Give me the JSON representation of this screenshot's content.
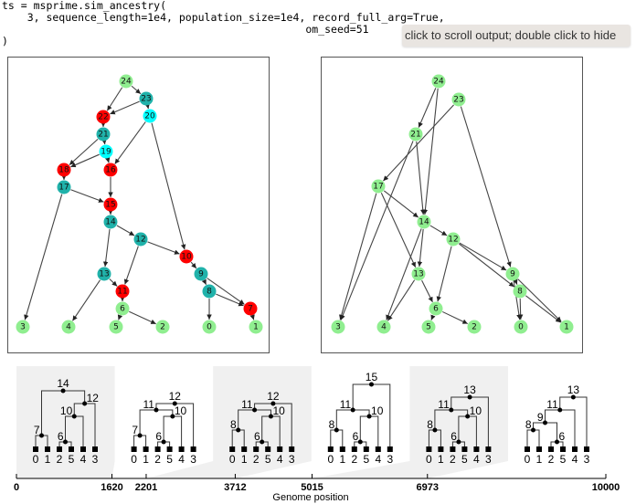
{
  "code": {
    "line1": "ts = msprime.sim_ancestry(",
    "line2": "    3, sequence_length=1e4, population_size=1e4, record_full_arg=True,",
    "line3": "                                                om_seed=51",
    "line4": ")"
  },
  "tooltip": "click to scroll output; double click to hide",
  "colors": {
    "red": "#ff0000",
    "cyan": "#00ffff",
    "teal": "#20b2aa",
    "green": "#90ee90",
    "edge": "#444444",
    "shade": "#f0f0f0"
  },
  "graphs": [
    {
      "name": "full-arg-graph",
      "node_colors": {
        "24": "green",
        "23": "teal",
        "22": "red",
        "20": "cyan",
        "21": "teal",
        "19": "cyan",
        "18": "red",
        "16": "red",
        "17": "teal",
        "15": "red",
        "14": "teal",
        "12": "teal",
        "10": "red",
        "13": "teal",
        "9": "teal",
        "11": "red",
        "8": "teal",
        "7": "red",
        "6": "green",
        "3": "green",
        "4": "green",
        "5": "green",
        "2": "green",
        "0": "green",
        "1": "green"
      },
      "edges": [
        [
          "24",
          "22"
        ],
        [
          "24",
          "23"
        ],
        [
          "23",
          "22"
        ],
        [
          "23",
          "20"
        ],
        [
          "22",
          "21"
        ],
        [
          "21",
          "19"
        ],
        [
          "21",
          "18"
        ],
        [
          "19",
          "18"
        ],
        [
          "19",
          "16"
        ],
        [
          "20",
          "16"
        ],
        [
          "20",
          "10"
        ],
        [
          "18",
          "17"
        ],
        [
          "17",
          "15"
        ],
        [
          "17",
          "3"
        ],
        [
          "16",
          "15"
        ],
        [
          "15",
          "14"
        ],
        [
          "14",
          "12"
        ],
        [
          "14",
          "13"
        ],
        [
          "12",
          "10"
        ],
        [
          "12",
          "11"
        ],
        [
          "13",
          "11"
        ],
        [
          "13",
          "4"
        ],
        [
          "10",
          "9"
        ],
        [
          "9",
          "8"
        ],
        [
          "9",
          "7"
        ],
        [
          "8",
          "7"
        ],
        [
          "8",
          "0"
        ],
        [
          "11",
          "6"
        ],
        [
          "6",
          "5"
        ],
        [
          "6",
          "2"
        ],
        [
          "7",
          "1"
        ]
      ]
    },
    {
      "name": "simplified-graph",
      "node_colors": {
        "24": "green",
        "23": "green",
        "21": "green",
        "17": "green",
        "14": "green",
        "12": "green",
        "13": "green",
        "9": "green",
        "8": "green",
        "6": "green",
        "3": "green",
        "4": "green",
        "5": "green",
        "2": "green",
        "0": "green",
        "1": "green"
      },
      "edges": [
        [
          "24",
          "21"
        ],
        [
          "24",
          "14"
        ],
        [
          "23",
          "17"
        ],
        [
          "23",
          "9"
        ],
        [
          "21",
          "14"
        ],
        [
          "21",
          "3"
        ],
        [
          "17",
          "3"
        ],
        [
          "17",
          "14"
        ],
        [
          "17",
          "13"
        ],
        [
          "14",
          "12"
        ],
        [
          "14",
          "13"
        ],
        [
          "14",
          "4"
        ],
        [
          "12",
          "9"
        ],
        [
          "12",
          "8"
        ],
        [
          "12",
          "6"
        ],
        [
          "13",
          "4"
        ],
        [
          "13",
          "6"
        ],
        [
          "9",
          "8"
        ],
        [
          "9",
          "0"
        ],
        [
          "9",
          "1"
        ],
        [
          "8",
          "0"
        ],
        [
          "8",
          "1"
        ],
        [
          "6",
          "5"
        ],
        [
          "6",
          "2"
        ]
      ]
    }
  ],
  "trees": [
    {
      "interval": [
        0,
        1620
      ],
      "shaded": true,
      "root": {
        "id": "14",
        "c": [
          {
            "id": "7",
            "c": [
              {
                "id": "0"
              },
              {
                "id": "1"
              }
            ]
          },
          {
            "id": "12",
            "c": [
              {
                "id": "10",
                "c": [
                  {
                    "id": "6",
                    "c": [
                      {
                        "id": "2"
                      },
                      {
                        "id": "5"
                      }
                    ]
                  },
                  {
                    "id": "4"
                  }
                ]
              },
              {
                "id": "3"
              }
            ]
          }
        ]
      }
    },
    {
      "interval": [
        1620,
        2201
      ],
      "shaded": false,
      "root": {
        "id": "12",
        "c": [
          {
            "id": "11",
            "c": [
              {
                "id": "7",
                "c": [
                  {
                    "id": "0"
                  },
                  {
                    "id": "1"
                  }
                ]
              },
              {
                "id": "10",
                "c": [
                  {
                    "id": "6",
                    "c": [
                      {
                        "id": "2"
                      },
                      {
                        "id": "5"
                      }
                    ]
                  },
                  {
                    "id": "4"
                  }
                ]
              }
            ]
          },
          {
            "id": "3"
          }
        ]
      }
    },
    {
      "interval": [
        2201,
        3712
      ],
      "shaded": true,
      "root": {
        "id": "12",
        "c": [
          {
            "id": "11",
            "c": [
              {
                "id": "8",
                "c": [
                  {
                    "id": "0"
                  },
                  {
                    "id": "1"
                  }
                ]
              },
              {
                "id": "10",
                "c": [
                  {
                    "id": "6",
                    "c": [
                      {
                        "id": "2"
                      },
                      {
                        "id": "5"
                      }
                    ]
                  },
                  {
                    "id": "4"
                  }
                ]
              }
            ]
          },
          {
            "id": "3"
          }
        ]
      }
    },
    {
      "interval": [
        3712,
        5015
      ],
      "shaded": false,
      "root": {
        "id": "15",
        "c": [
          {
            "id": "11",
            "c": [
              {
                "id": "8",
                "c": [
                  {
                    "id": "0"
                  },
                  {
                    "id": "1"
                  }
                ]
              },
              {
                "id": "10",
                "c": [
                  {
                    "id": "6",
                    "c": [
                      {
                        "id": "2"
                      },
                      {
                        "id": "5"
                      }
                    ]
                  },
                  {
                    "id": "4"
                  }
                ]
              }
            ]
          },
          {
            "id": "3"
          }
        ]
      }
    },
    {
      "interval": [
        5015,
        6973
      ],
      "shaded": true,
      "root": {
        "id": "13",
        "c": [
          {
            "id": "11",
            "c": [
              {
                "id": "8",
                "c": [
                  {
                    "id": "0"
                  },
                  {
                    "id": "1"
                  }
                ]
              },
              {
                "id": "10",
                "c": [
                  {
                    "id": "6",
                    "c": [
                      {
                        "id": "2"
                      },
                      {
                        "id": "5"
                      }
                    ]
                  },
                  {
                    "id": "4"
                  }
                ]
              }
            ]
          },
          {
            "id": "3"
          }
        ]
      }
    },
    {
      "interval": [
        6973,
        10000
      ],
      "shaded": false,
      "root": {
        "id": "13",
        "c": [
          {
            "id": "11",
            "c": [
              {
                "id": "9",
                "c": [
                  {
                    "id": "8",
                    "c": [
                      {
                        "id": "0"
                      },
                      {
                        "id": "1"
                      }
                    ]
                  },
                  {
                    "id": "6",
                    "c": [
                      {
                        "id": "2"
                      },
                      {
                        "id": "5"
                      }
                    ]
                  }
                ]
              },
              {
                "id": "4"
              }
            ]
          },
          {
            "id": "3"
          }
        ]
      }
    }
  ],
  "axis": {
    "ticks": [
      "0",
      "1620",
      "2201",
      "3712",
      "5015",
      "6973",
      "10000"
    ],
    "range": [
      0,
      10000
    ],
    "label": "Genome position"
  }
}
